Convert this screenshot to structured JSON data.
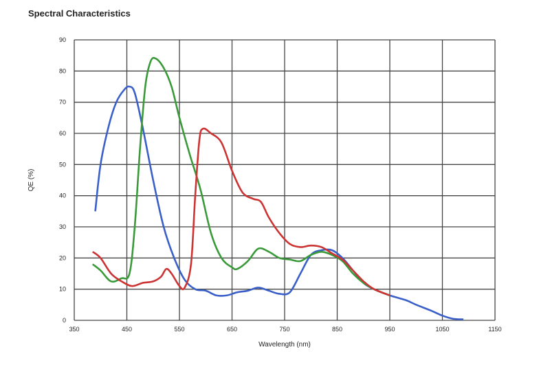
{
  "chart_data": {
    "type": "line",
    "title": "Spectral Characteristics",
    "xlabel": "Wavelength (nm)",
    "ylabel": "QE (%)",
    "xlim": [
      350,
      1150
    ],
    "ylim": [
      0,
      90
    ],
    "xticks": [
      350,
      450,
      550,
      650,
      750,
      850,
      950,
      1050,
      1150
    ],
    "yticks": [
      0,
      10,
      20,
      30,
      40,
      50,
      60,
      70,
      80,
      90
    ],
    "grid": true,
    "series": [
      {
        "name": "Blue",
        "color": "#3a5fc8",
        "points": [
          [
            390,
            35
          ],
          [
            400,
            50
          ],
          [
            415,
            62
          ],
          [
            430,
            70
          ],
          [
            445,
            74
          ],
          [
            455,
            75
          ],
          [
            465,
            73
          ],
          [
            480,
            62
          ],
          [
            500,
            45
          ],
          [
            520,
            30
          ],
          [
            540,
            20
          ],
          [
            560,
            13
          ],
          [
            580,
            10
          ],
          [
            600,
            9.5
          ],
          [
            620,
            8
          ],
          [
            640,
            8
          ],
          [
            660,
            9
          ],
          [
            680,
            9.5
          ],
          [
            700,
            10.5
          ],
          [
            720,
            9.5
          ],
          [
            740,
            8.5
          ],
          [
            760,
            9
          ],
          [
            780,
            15
          ],
          [
            800,
            21
          ],
          [
            820,
            22.5
          ],
          [
            840,
            22.5
          ],
          [
            860,
            20
          ],
          [
            880,
            16
          ],
          [
            900,
            12
          ],
          [
            920,
            10
          ],
          [
            950,
            8
          ],
          [
            980,
            6.5
          ],
          [
            1000,
            5
          ],
          [
            1030,
            3
          ],
          [
            1050,
            1.5
          ],
          [
            1070,
            0.5
          ],
          [
            1090,
            0.3
          ]
        ]
      },
      {
        "name": "Green",
        "color": "#3a9a3a",
        "points": [
          [
            385,
            18
          ],
          [
            400,
            16
          ],
          [
            420,
            12.5
          ],
          [
            440,
            13.5
          ],
          [
            455,
            15
          ],
          [
            465,
            30
          ],
          [
            475,
            55
          ],
          [
            485,
            75
          ],
          [
            495,
            83
          ],
          [
            505,
            84
          ],
          [
            520,
            81
          ],
          [
            535,
            75
          ],
          [
            550,
            65
          ],
          [
            570,
            53
          ],
          [
            590,
            42
          ],
          [
            610,
            28
          ],
          [
            630,
            20
          ],
          [
            650,
            17
          ],
          [
            660,
            16.5
          ],
          [
            680,
            19
          ],
          [
            700,
            23
          ],
          [
            720,
            22
          ],
          [
            740,
            20
          ],
          [
            760,
            19.5
          ],
          [
            780,
            19
          ],
          [
            800,
            21
          ],
          [
            820,
            22
          ],
          [
            840,
            21
          ],
          [
            860,
            19
          ],
          [
            880,
            15
          ],
          [
            900,
            12
          ],
          [
            920,
            10
          ],
          [
            950,
            8
          ]
        ]
      },
      {
        "name": "Red",
        "color": "#cc3333",
        "points": [
          [
            385,
            22
          ],
          [
            400,
            20
          ],
          [
            420,
            15
          ],
          [
            440,
            12.5
          ],
          [
            460,
            11
          ],
          [
            480,
            12
          ],
          [
            500,
            12.5
          ],
          [
            515,
            14
          ],
          [
            525,
            16.5
          ],
          [
            535,
            15
          ],
          [
            550,
            11
          ],
          [
            560,
            10.5
          ],
          [
            572,
            18
          ],
          [
            580,
            40
          ],
          [
            588,
            58
          ],
          [
            595,
            61.5
          ],
          [
            610,
            60
          ],
          [
            630,
            57
          ],
          [
            650,
            48
          ],
          [
            670,
            41
          ],
          [
            690,
            39
          ],
          [
            705,
            38
          ],
          [
            720,
            33
          ],
          [
            740,
            28
          ],
          [
            760,
            24.5
          ],
          [
            780,
            23.5
          ],
          [
            800,
            24
          ],
          [
            820,
            23.5
          ],
          [
            840,
            21.5
          ],
          [
            860,
            19.5
          ],
          [
            880,
            16
          ],
          [
            900,
            12.5
          ],
          [
            920,
            10
          ],
          [
            950,
            8
          ]
        ]
      }
    ]
  }
}
